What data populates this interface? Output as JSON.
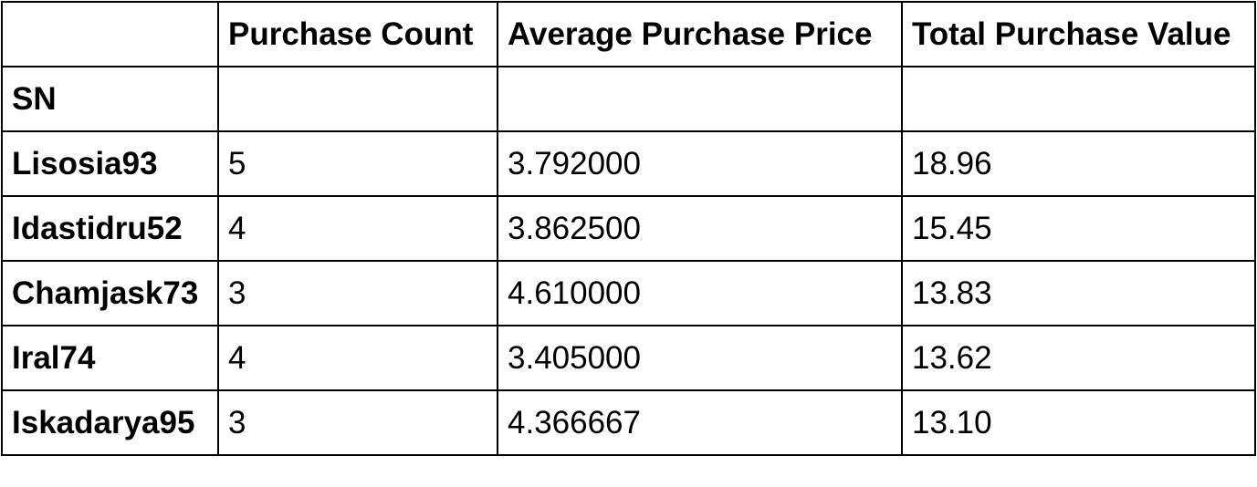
{
  "table": {
    "columns": [
      "",
      "Purchase Count",
      "Average Purchase Price",
      "Total Purchase Value"
    ],
    "index_name": "SN",
    "rows": [
      {
        "sn": "Lisosia93",
        "count": "5",
        "avg": "3.792000",
        "total": "18.96"
      },
      {
        "sn": "Idastidru52",
        "count": "4",
        "avg": "3.862500",
        "total": "15.45"
      },
      {
        "sn": "Chamjask73",
        "count": "3",
        "avg": "4.610000",
        "total": "13.83"
      },
      {
        "sn": "Iral74",
        "count": "4",
        "avg": "3.405000",
        "total": "13.62"
      },
      {
        "sn": "Iskadarya95",
        "count": "3",
        "avg": "4.366667",
        "total": "13.10"
      }
    ]
  }
}
